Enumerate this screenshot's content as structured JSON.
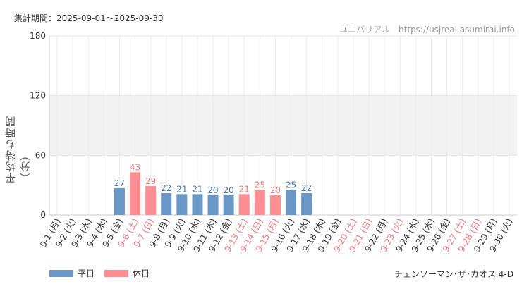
{
  "header": {
    "period_label": "集計期間：2025-09-01～2025-09-30",
    "site_label": "ユニバリアル　https://usjreal.asumirai.info"
  },
  "legend": {
    "weekday_label": "平日",
    "holiday_label": "休日"
  },
  "footer": {
    "attraction": "チェンソーマン･ザ･カオス 4-D"
  },
  "colors": {
    "weekday": "#6b97c6",
    "holiday": "#fd8f93",
    "weekday_text": "#4a78a8",
    "holiday_text": "#f0777c"
  },
  "chart_data": {
    "type": "bar",
    "ylabel": "平均待ち時間（分）",
    "ylim": [
      0,
      180
    ],
    "yticks": [
      0,
      60,
      120,
      180
    ],
    "shaded_band": [
      60,
      120
    ],
    "categories": [
      "9-1 (月)",
      "9-2 (火)",
      "9-3 (水)",
      "9-4 (木)",
      "9-5 (金)",
      "9-6 (土)",
      "9-7 (日)",
      "9-8 (月)",
      "9-9 (火)",
      "9-10 (水)",
      "9-11 (木)",
      "9-12 (金)",
      "9-13 (土)",
      "9-14 (日)",
      "9-15 (月)",
      "9-16 (火)",
      "9-17 (水)",
      "9-18 (木)",
      "9-19 (金)",
      "9-20 (土)",
      "9-21 (日)",
      "9-22 (月)",
      "9-23 (火)",
      "9-24 (水)",
      "9-25 (木)",
      "9-26 (金)",
      "9-27 (土)",
      "9-28 (日)",
      "9-29 (月)",
      "9-30 (火)"
    ],
    "day_type": [
      "weekday",
      "weekday",
      "weekday",
      "weekday",
      "weekday",
      "holiday",
      "holiday",
      "weekday",
      "weekday",
      "weekday",
      "weekday",
      "weekday",
      "holiday",
      "holiday",
      "holiday",
      "weekday",
      "weekday",
      "weekday",
      "weekday",
      "holiday",
      "holiday",
      "weekday",
      "holiday",
      "weekday",
      "weekday",
      "weekday",
      "holiday",
      "holiday",
      "weekday",
      "weekday"
    ],
    "series": [
      {
        "name": "平日",
        "values": [
          null,
          null,
          null,
          null,
          27,
          null,
          null,
          22,
          21,
          21,
          20,
          20,
          null,
          null,
          null,
          25,
          22,
          null,
          null,
          null,
          null,
          null,
          null,
          null,
          null,
          null,
          null,
          null,
          null,
          null
        ]
      },
      {
        "name": "休日",
        "values": [
          null,
          null,
          null,
          null,
          null,
          43,
          29,
          null,
          null,
          null,
          null,
          null,
          21,
          25,
          20,
          null,
          null,
          null,
          null,
          null,
          null,
          null,
          null,
          null,
          null,
          null,
          null,
          null,
          null,
          null
        ]
      }
    ],
    "grid": true
  }
}
